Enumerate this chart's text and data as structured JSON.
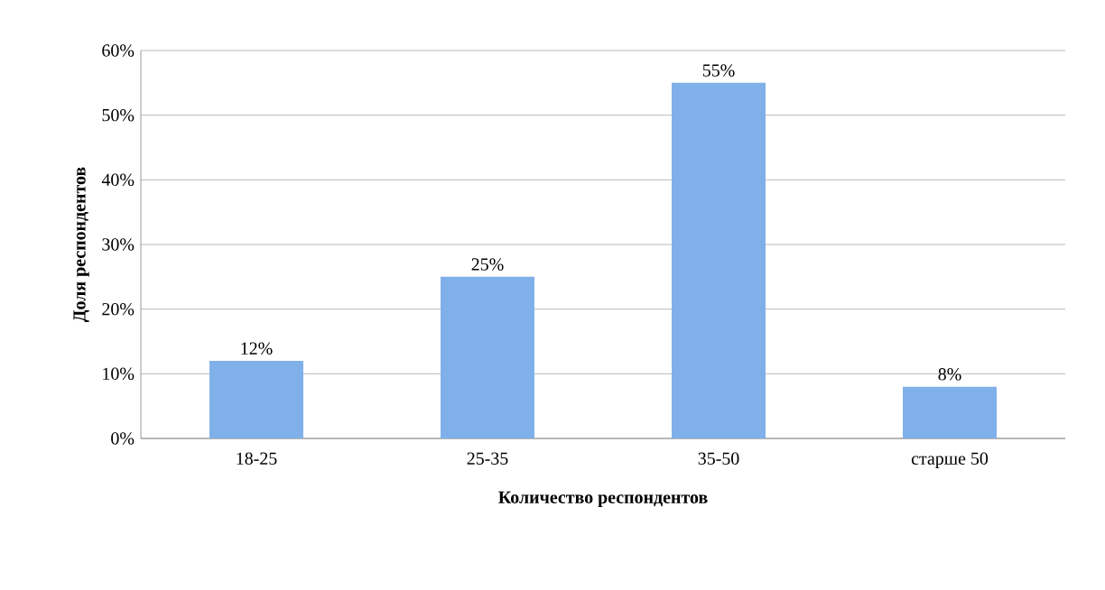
{
  "chart_data": {
    "type": "bar",
    "xlabel": "Количество респондентов",
    "ylabel": "Доля респондентов",
    "categories": [
      "18-25",
      "25-35",
      "35-50",
      "старше 50"
    ],
    "values": [
      12,
      25,
      55,
      8
    ],
    "value_labels": [
      "12%",
      "25%",
      "55%",
      "8%"
    ],
    "color": "#80b0ea",
    "ylim": [
      0,
      60
    ],
    "yticks": [
      {
        "value": 0,
        "label": "0%"
      },
      {
        "value": 10,
        "label": "10%"
      },
      {
        "value": 20,
        "label": "20%"
      },
      {
        "value": 30,
        "label": "30%"
      },
      {
        "value": 40,
        "label": "40%"
      },
      {
        "value": 50,
        "label": "50%"
      },
      {
        "value": 60,
        "label": "60%"
      }
    ],
    "grid": "y"
  }
}
